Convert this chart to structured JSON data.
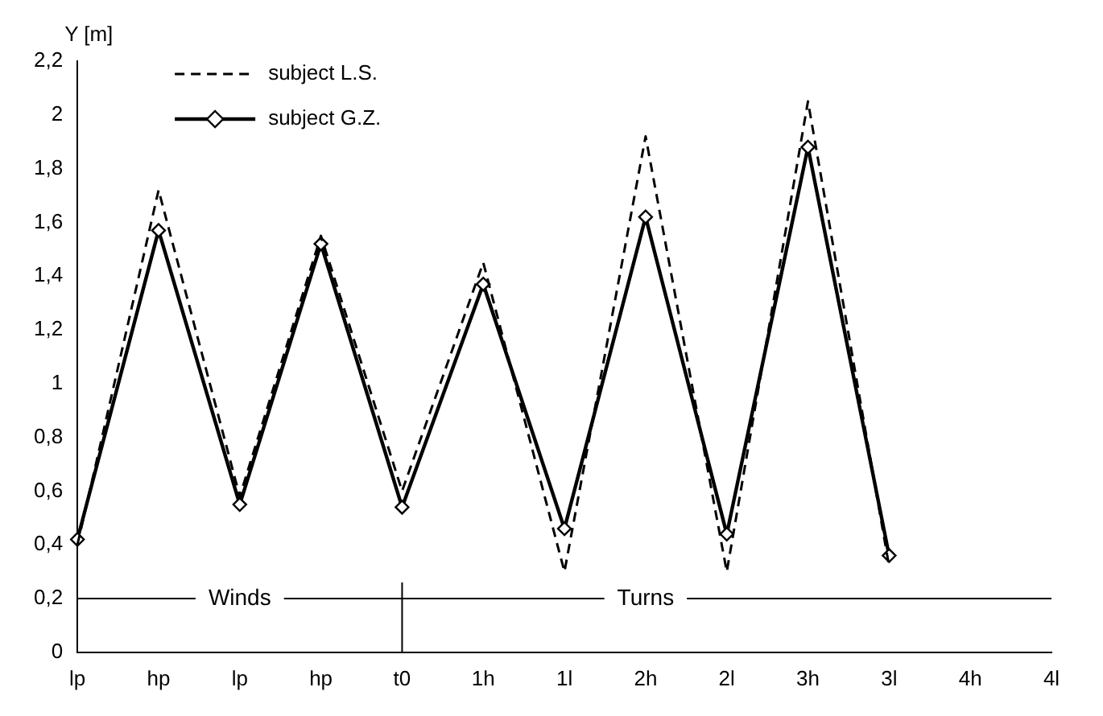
{
  "chart_data": {
    "type": "line",
    "ylabel": "Y [m]",
    "categories": [
      "lp",
      "hp",
      "lp",
      "hp",
      "t0",
      "1h",
      "1l",
      "2h",
      "2l",
      "3h",
      "3l",
      "4h",
      "4l"
    ],
    "series": [
      {
        "name": "subject L.S.",
        "color": "#000000",
        "line_style": "dashed",
        "marker": "none",
        "values": [
          0.4,
          1.72,
          0.58,
          1.55,
          0.6,
          1.45,
          0.3,
          1.92,
          0.3,
          2.05,
          0.32,
          null,
          null
        ]
      },
      {
        "name": "subject G.Z.",
        "color": "#000000",
        "line_style": "solid",
        "marker": "diamond",
        "values": [
          0.42,
          1.57,
          0.55,
          1.52,
          0.54,
          1.37,
          0.46,
          1.62,
          0.44,
          1.88,
          0.36,
          null,
          null
        ]
      }
    ],
    "ylim": [
      0,
      2.2
    ],
    "yticks": [
      0,
      {
        "value": 0.2,
        "label": "0,2"
      },
      {
        "value": 0.4,
        "label": "0,4"
      },
      {
        "value": 0.6,
        "label": "0,6"
      },
      {
        "value": 0.8,
        "label": "0,8"
      },
      1,
      {
        "value": 1.2,
        "label": "1,2"
      },
      {
        "value": 1.4,
        "label": "1,4"
      },
      {
        "value": 1.6,
        "label": "1,6"
      },
      {
        "value": 1.8,
        "label": "1,8"
      },
      2,
      {
        "value": 2.2,
        "label": "2,2"
      }
    ],
    "ref_lines": [
      {
        "axis": "y",
        "value": 0.2,
        "color": "#000000"
      },
      {
        "axis": "x",
        "value": "t0",
        "color": "#000000"
      }
    ],
    "annotations": [
      "Winds",
      "Turns"
    ],
    "legend": "top",
    "grid": false
  }
}
